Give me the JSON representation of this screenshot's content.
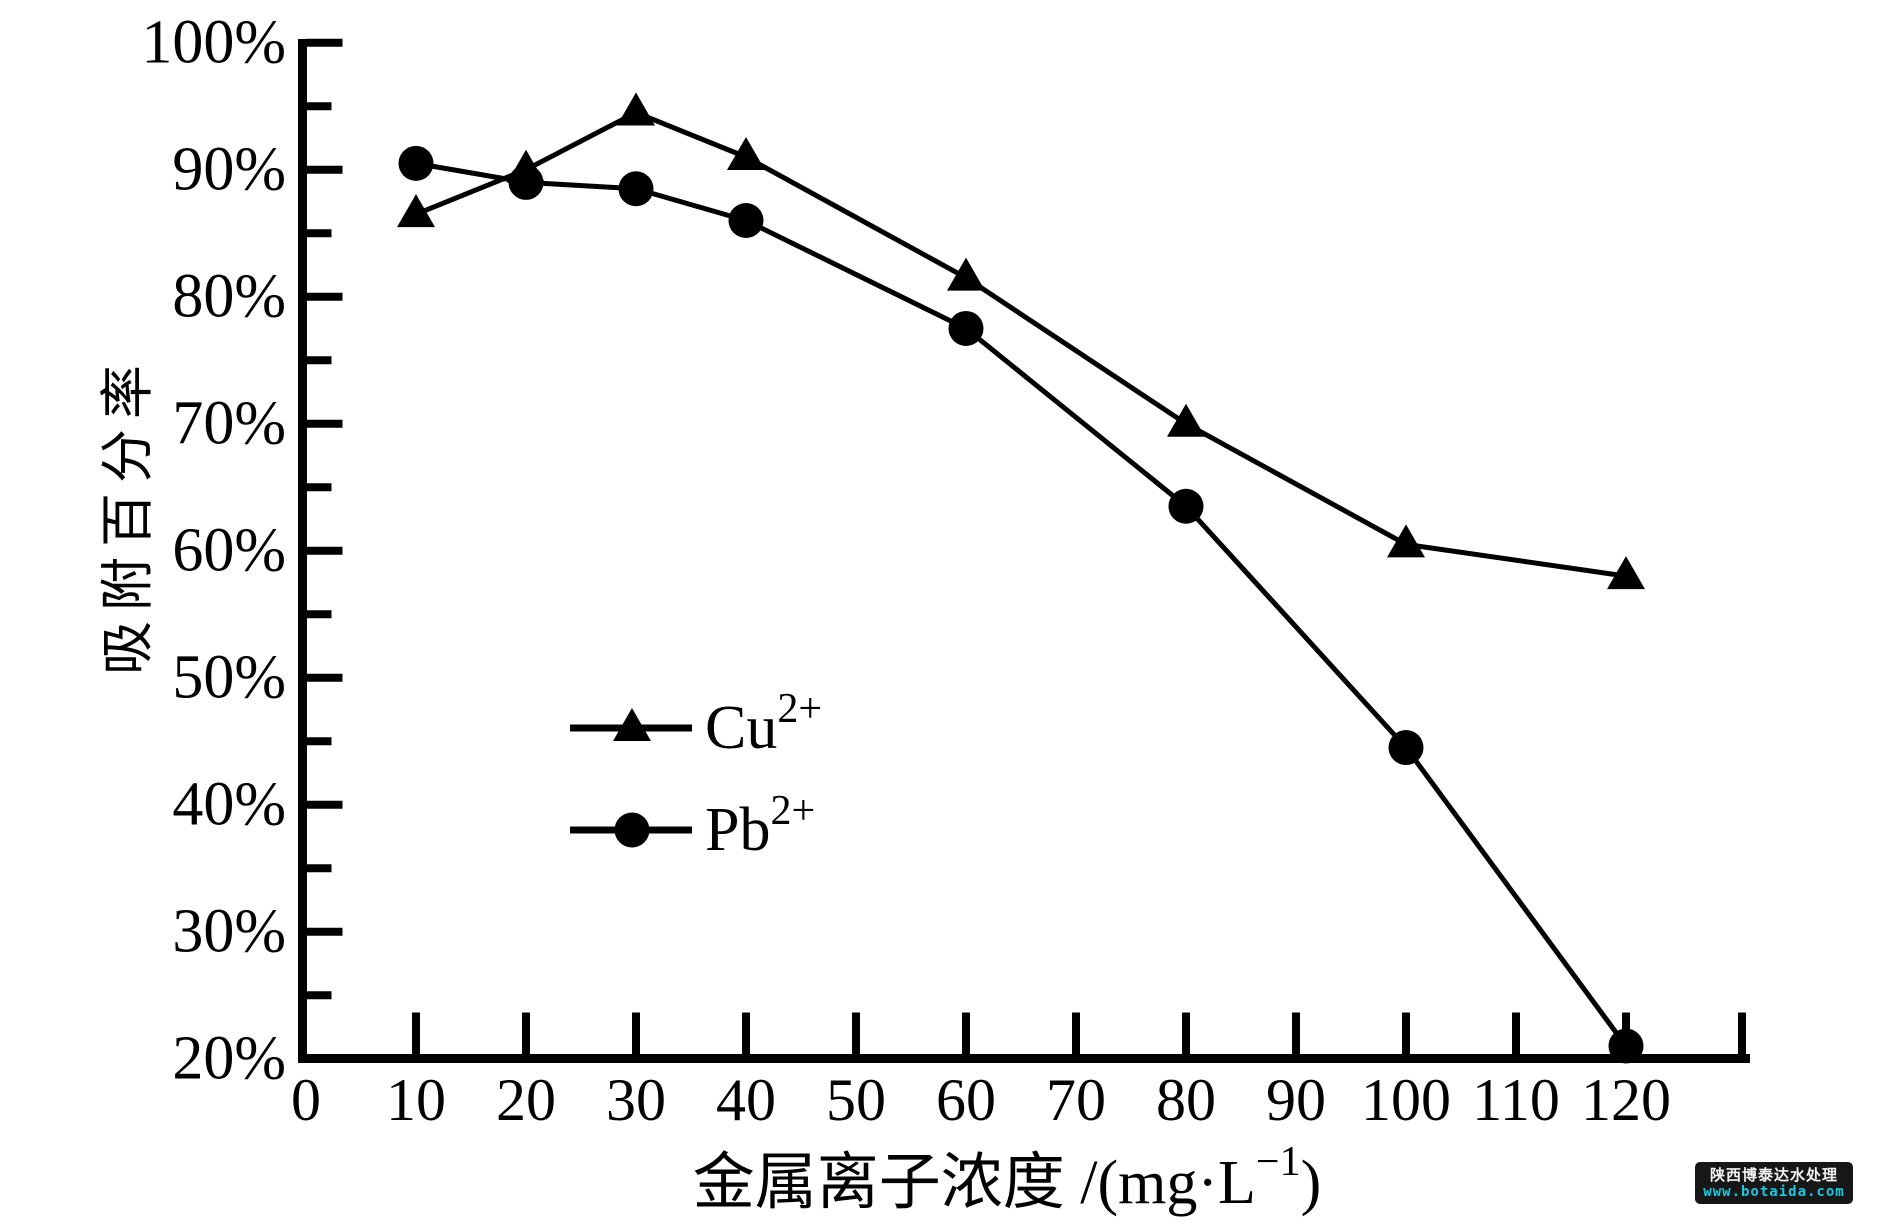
{
  "watermark": {
    "line1": "陕西博泰达水处理",
    "line2": "www.botaida.com",
    "url_color": "#1ac8e0",
    "bg_color": "#171717",
    "text_color": "#f2f2f2"
  },
  "chart_data": {
    "type": "line",
    "title": "",
    "xlabel": {
      "text": "金属离子浓度 /(mg·L",
      "sup": "−1",
      "tail": ")"
    },
    "ylabel": "吸附百分率",
    "x": [
      10,
      20,
      30,
      40,
      60,
      80,
      100,
      120
    ],
    "series": [
      {
        "name": "Cu2+",
        "label": {
          "base": "Cu",
          "sup": "2+"
        },
        "marker": "triangle",
        "color": "#000000",
        "values": [
          86.5,
          90,
          94.5,
          91,
          81.5,
          70,
          60.5,
          58
        ]
      },
      {
        "name": "Pb2+",
        "label": {
          "base": "Pb",
          "sup": "2+"
        },
        "marker": "circle",
        "color": "#000000",
        "values": [
          90.5,
          89,
          88.5,
          86,
          77.5,
          63.5,
          44.5,
          21
        ]
      }
    ],
    "xlim": [
      0,
      130
    ],
    "ylim": [
      20,
      100
    ],
    "x_ticks": [
      0,
      10,
      20,
      30,
      40,
      50,
      60,
      70,
      80,
      90,
      100,
      110,
      120
    ],
    "y_ticks_major": [
      20,
      30,
      40,
      50,
      60,
      70,
      80,
      90,
      100
    ],
    "y_tick_labels": [
      "20%",
      "30%",
      "40%",
      "50%",
      "60%",
      "70%",
      "80%",
      "90%",
      "100%"
    ],
    "y_minor_ticks": [
      25,
      35,
      45,
      55,
      65,
      75,
      85,
      95
    ],
    "grid": false,
    "legend_position": "center-left",
    "line_color": "#000000",
    "background": "#ffffff"
  }
}
